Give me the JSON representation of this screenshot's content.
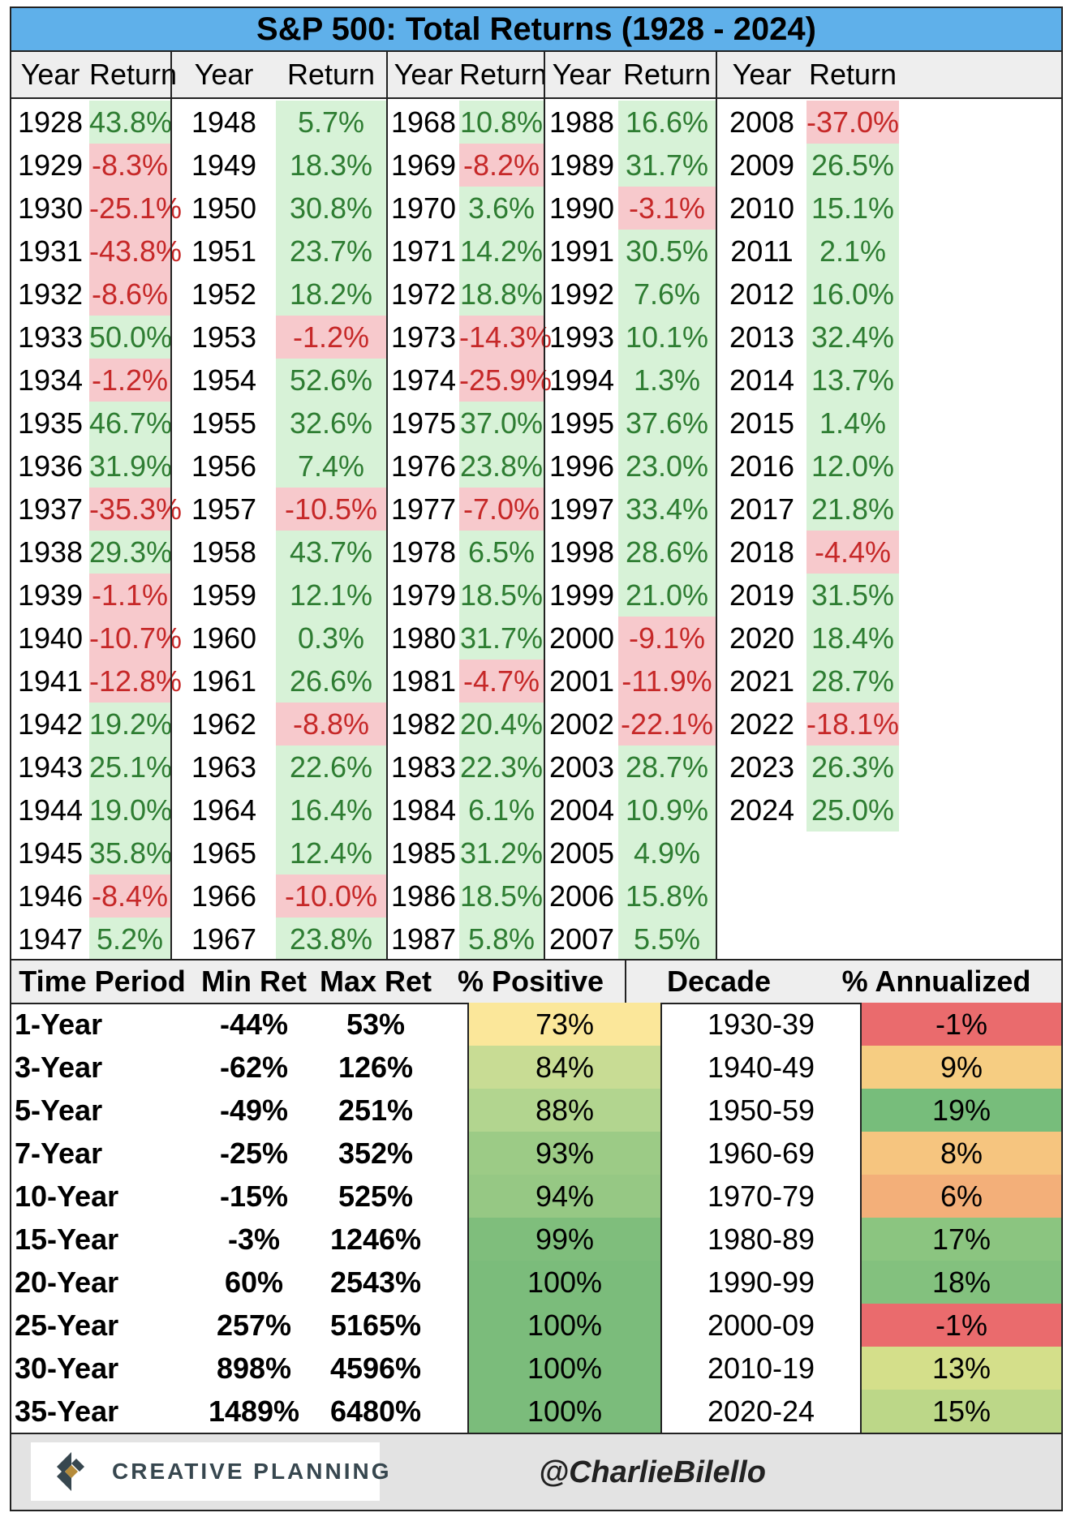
{
  "title": "S&P 500: Total Returns (1928 - 2024)",
  "header": {
    "year_label": "Year",
    "return_label": "Return"
  },
  "chart_data": {
    "type": "table",
    "title": "S&P 500: Total Returns (1928 - 2024)",
    "columns": [
      [
        [
          "1928",
          "43.8%"
        ],
        [
          "1929",
          "-8.3%"
        ],
        [
          "1930",
          "-25.1%"
        ],
        [
          "1931",
          "-43.8%"
        ],
        [
          "1932",
          "-8.6%"
        ],
        [
          "1933",
          "50.0%"
        ],
        [
          "1934",
          "-1.2%"
        ],
        [
          "1935",
          "46.7%"
        ],
        [
          "1936",
          "31.9%"
        ],
        [
          "1937",
          "-35.3%"
        ],
        [
          "1938",
          "29.3%"
        ],
        [
          "1939",
          "-1.1%"
        ],
        [
          "1940",
          "-10.7%"
        ],
        [
          "1941",
          "-12.8%"
        ],
        [
          "1942",
          "19.2%"
        ],
        [
          "1943",
          "25.1%"
        ],
        [
          "1944",
          "19.0%"
        ],
        [
          "1945",
          "35.8%"
        ],
        [
          "1946",
          "-8.4%"
        ],
        [
          "1947",
          "5.2%"
        ]
      ],
      [
        [
          "1948",
          "5.7%"
        ],
        [
          "1949",
          "18.3%"
        ],
        [
          "1950",
          "30.8%"
        ],
        [
          "1951",
          "23.7%"
        ],
        [
          "1952",
          "18.2%"
        ],
        [
          "1953",
          "-1.2%"
        ],
        [
          "1954",
          "52.6%"
        ],
        [
          "1955",
          "32.6%"
        ],
        [
          "1956",
          "7.4%"
        ],
        [
          "1957",
          "-10.5%"
        ],
        [
          "1958",
          "43.7%"
        ],
        [
          "1959",
          "12.1%"
        ],
        [
          "1960",
          "0.3%"
        ],
        [
          "1961",
          "26.6%"
        ],
        [
          "1962",
          "-8.8%"
        ],
        [
          "1963",
          "22.6%"
        ],
        [
          "1964",
          "16.4%"
        ],
        [
          "1965",
          "12.4%"
        ],
        [
          "1966",
          "-10.0%"
        ],
        [
          "1967",
          "23.8%"
        ]
      ],
      [
        [
          "1968",
          "10.8%"
        ],
        [
          "1969",
          "-8.2%"
        ],
        [
          "1970",
          "3.6%"
        ],
        [
          "1971",
          "14.2%"
        ],
        [
          "1972",
          "18.8%"
        ],
        [
          "1973",
          "-14.3%"
        ],
        [
          "1974",
          "-25.9%"
        ],
        [
          "1975",
          "37.0%"
        ],
        [
          "1976",
          "23.8%"
        ],
        [
          "1977",
          "-7.0%"
        ],
        [
          "1978",
          "6.5%"
        ],
        [
          "1979",
          "18.5%"
        ],
        [
          "1980",
          "31.7%"
        ],
        [
          "1981",
          "-4.7%"
        ],
        [
          "1982",
          "20.4%"
        ],
        [
          "1983",
          "22.3%"
        ],
        [
          "1984",
          "6.1%"
        ],
        [
          "1985",
          "31.2%"
        ],
        [
          "1986",
          "18.5%"
        ],
        [
          "1987",
          "5.8%"
        ]
      ],
      [
        [
          "1988",
          "16.6%"
        ],
        [
          "1989",
          "31.7%"
        ],
        [
          "1990",
          "-3.1%"
        ],
        [
          "1991",
          "30.5%"
        ],
        [
          "1992",
          "7.6%"
        ],
        [
          "1993",
          "10.1%"
        ],
        [
          "1994",
          "1.3%"
        ],
        [
          "1995",
          "37.6%"
        ],
        [
          "1996",
          "23.0%"
        ],
        [
          "1997",
          "33.4%"
        ],
        [
          "1998",
          "28.6%"
        ],
        [
          "1999",
          "21.0%"
        ],
        [
          "2000",
          "-9.1%"
        ],
        [
          "2001",
          "-11.9%"
        ],
        [
          "2002",
          "-22.1%"
        ],
        [
          "2003",
          "28.7%"
        ],
        [
          "2004",
          "10.9%"
        ],
        [
          "2005",
          "4.9%"
        ],
        [
          "2006",
          "15.8%"
        ],
        [
          "2007",
          "5.5%"
        ]
      ],
      [
        [
          "2008",
          "-37.0%"
        ],
        [
          "2009",
          "26.5%"
        ],
        [
          "2010",
          "15.1%"
        ],
        [
          "2011",
          "2.1%"
        ],
        [
          "2012",
          "16.0%"
        ],
        [
          "2013",
          "32.4%"
        ],
        [
          "2014",
          "13.7%"
        ],
        [
          "2015",
          "1.4%"
        ],
        [
          "2016",
          "12.0%"
        ],
        [
          "2017",
          "21.8%"
        ],
        [
          "2018",
          "-4.4%"
        ],
        [
          "2019",
          "31.5%"
        ],
        [
          "2020",
          "18.4%"
        ],
        [
          "2021",
          "28.7%"
        ],
        [
          "2022",
          "-18.1%"
        ],
        [
          "2023",
          "26.3%"
        ],
        [
          "2024",
          "25.0%"
        ]
      ]
    ],
    "stats_headers": [
      "Time Period",
      "Min Ret",
      "Max Ret",
      "% Positive",
      "Decade",
      "% Annualized"
    ],
    "stats": [
      {
        "period": "1-Year",
        "min": "-44%",
        "max": "53%",
        "pos": "73%",
        "pos_color": "#fbe79a",
        "decade": "1930-39",
        "ann": "-1%",
        "ann_color": "#ea6b6d"
      },
      {
        "period": "3-Year",
        "min": "-62%",
        "max": "126%",
        "pos": "84%",
        "pos_color": "#c8dc94",
        "decade": "1940-49",
        "ann": "9%",
        "ann_color": "#f6cd82"
      },
      {
        "period": "5-Year",
        "min": "-49%",
        "max": "251%",
        "pos": "88%",
        "pos_color": "#b2d58f",
        "decade": "1950-59",
        "ann": "19%",
        "ann_color": "#77bd7b"
      },
      {
        "period": "7-Year",
        "min": "-25%",
        "max": "352%",
        "pos": "93%",
        "pos_color": "#9ccb86",
        "decade": "1960-69",
        "ann": "8%",
        "ann_color": "#f6c57f"
      },
      {
        "period": "10-Year",
        "min": "-15%",
        "max": "525%",
        "pos": "94%",
        "pos_color": "#96c884",
        "decade": "1970-79",
        "ann": "6%",
        "ann_color": "#f3af79"
      },
      {
        "period": "15-Year",
        "min": "-3%",
        "max": "1246%",
        "pos": "99%",
        "pos_color": "#7fbe7c",
        "decade": "1980-89",
        "ann": "17%",
        "ann_color": "#8bc580"
      },
      {
        "period": "20-Year",
        "min": "60%",
        "max": "2543%",
        "pos": "100%",
        "pos_color": "#7bbc7b",
        "decade": "1990-99",
        "ann": "18%",
        "ann_color": "#83c17e"
      },
      {
        "period": "25-Year",
        "min": "257%",
        "max": "5165%",
        "pos": "100%",
        "pos_color": "#7bbc7b",
        "decade": "2000-09",
        "ann": "-1%",
        "ann_color": "#ea6b6d"
      },
      {
        "period": "30-Year",
        "min": "898%",
        "max": "4596%",
        "pos": "100%",
        "pos_color": "#7bbc7b",
        "decade": "2010-19",
        "ann": "13%",
        "ann_color": "#d4df8a"
      },
      {
        "period": "35-Year",
        "min": "1489%",
        "max": "6480%",
        "pos": "100%",
        "pos_color": "#7bbc7b",
        "decade": "2020-24",
        "ann": "15%",
        "ann_color": "#bcd788"
      }
    ],
    "colors": {
      "positive_bg": "#d7f2d7",
      "positive_text": "#2e7d32",
      "negative_bg": "#f7c9cc",
      "negative_text": "#c62828",
      "title_bg": "#5fb0ea"
    }
  },
  "footer": {
    "logo_text": "CREATIVE PLANNING",
    "handle": "@CharlieBilello"
  }
}
